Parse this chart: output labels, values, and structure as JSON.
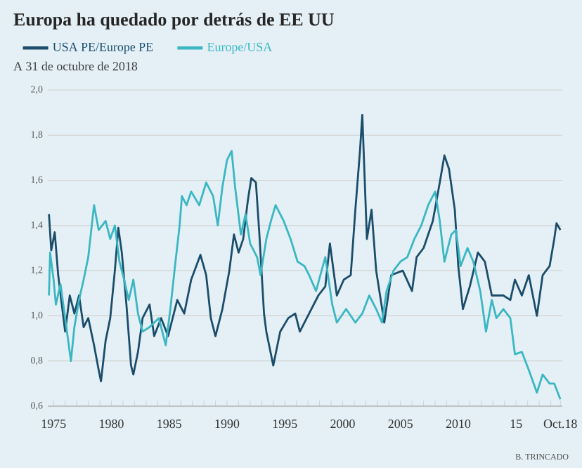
{
  "chart_data": {
    "type": "line",
    "title": "Europa ha quedado por detrás de EE UU",
    "subtitle": "A 31 de octubre de 2018",
    "annotations": [
      "B. TRINCADO"
    ],
    "series": [
      {
        "name": "USA PE/Europe PE",
        "color": "#1b4d6b",
        "x": [
          1974.6,
          1974.8,
          1975.1,
          1975.4,
          1976.0,
          1976.4,
          1976.8,
          1977.2,
          1977.6,
          1978.0,
          1978.5,
          1978.9,
          1979.1,
          1979.5,
          1979.9,
          1980.3,
          1980.6,
          1980.9,
          1981.3,
          1981.7,
          1981.9,
          1982.3,
          1982.7,
          1983.3,
          1983.7,
          1984.3,
          1984.9,
          1985.7,
          1986.3,
          1986.9,
          1987.7,
          1988.2,
          1988.6,
          1989.0,
          1989.6,
          1990.2,
          1990.6,
          1991.0,
          1991.4,
          1991.8,
          1992.1,
          1992.5,
          1992.8,
          1993.2,
          1993.4,
          1994.0,
          1994.6,
          1995.3,
          1995.9,
          1996.3,
          1997.1,
          1997.9,
          1998.5,
          1998.9,
          1999.5,
          2000.1,
          2000.7,
          2001.1,
          2001.5,
          2001.7,
          2002.1,
          2002.5,
          2002.9,
          2003.6,
          2004.2,
          2005.2,
          2006.0,
          2006.4,
          2007.0,
          2007.8,
          2008.4,
          2008.8,
          2009.2,
          2009.7,
          2010.0,
          2010.4,
          2011.0,
          2011.7,
          2012.3,
          2012.9,
          2013.9,
          2014.5,
          2014.9,
          2015.5,
          2016.1,
          2016.8,
          2017.3,
          2017.9,
          2018.3,
          2018.5,
          2018.83
        ],
        "values": [
          1.45,
          1.29,
          1.37,
          1.18,
          0.93,
          1.09,
          1.01,
          1.09,
          0.95,
          0.99,
          0.87,
          0.76,
          0.71,
          0.89,
          0.99,
          1.2,
          1.39,
          1.28,
          1.05,
          0.78,
          0.74,
          0.84,
          0.99,
          1.05,
          0.91,
          0.99,
          0.91,
          1.07,
          1.01,
          1.16,
          1.27,
          1.18,
          0.99,
          0.91,
          1.03,
          1.2,
          1.36,
          1.28,
          1.34,
          1.51,
          1.61,
          1.59,
          1.36,
          1.01,
          0.93,
          0.78,
          0.93,
          0.99,
          1.01,
          0.93,
          1.01,
          1.09,
          1.13,
          1.32,
          1.09,
          1.16,
          1.18,
          1.47,
          1.73,
          1.89,
          1.34,
          1.47,
          1.2,
          0.97,
          1.18,
          1.2,
          1.11,
          1.26,
          1.3,
          1.42,
          1.59,
          1.71,
          1.65,
          1.47,
          1.22,
          1.03,
          1.13,
          1.28,
          1.24,
          1.09,
          1.09,
          1.07,
          1.16,
          1.09,
          1.18,
          1.0,
          1.18,
          1.22,
          1.34,
          1.41,
          1.38
        ]
      },
      {
        "name": "Europe/USA",
        "color": "#3ab7c3",
        "x": [
          1974.6,
          1974.7,
          1975.0,
          1975.2,
          1975.6,
          1976.0,
          1976.5,
          1976.8,
          1977.2,
          1977.6,
          1978.0,
          1978.5,
          1978.9,
          1979.5,
          1979.9,
          1980.3,
          1980.7,
          1981.1,
          1981.5,
          1981.9,
          1982.3,
          1982.7,
          1983.3,
          1984.1,
          1984.7,
          1985.1,
          1985.5,
          1985.9,
          1986.1,
          1986.5,
          1986.9,
          1987.6,
          1988.2,
          1988.8,
          1989.2,
          1989.6,
          1990.0,
          1990.4,
          1990.7,
          1991.2,
          1991.6,
          1992.0,
          1992.6,
          1992.9,
          1993.4,
          1993.8,
          1994.2,
          1994.9,
          1995.5,
          1996.1,
          1996.7,
          1997.1,
          1997.7,
          1998.5,
          1999.1,
          1999.5,
          2000.3,
          2001.1,
          2001.7,
          2002.3,
          2002.9,
          2003.4,
          2003.8,
          2004.4,
          2005.0,
          2005.6,
          2006.2,
          2006.8,
          2007.4,
          2008.0,
          2008.4,
          2008.8,
          2009.4,
          2009.8,
          2010.2,
          2010.8,
          2011.3,
          2011.9,
          2012.4,
          2012.9,
          2013.3,
          2013.9,
          2014.5,
          2014.9,
          2015.5,
          2016.1,
          2016.8,
          2017.3,
          2017.9,
          2018.3,
          2018.83
        ],
        "values": [
          1.09,
          1.28,
          1.16,
          1.05,
          1.14,
          0.99,
          0.8,
          0.95,
          1.07,
          1.16,
          1.26,
          1.49,
          1.38,
          1.42,
          1.34,
          1.4,
          1.24,
          1.16,
          1.07,
          1.16,
          1.01,
          0.93,
          0.95,
          0.99,
          0.87,
          1.03,
          1.22,
          1.4,
          1.53,
          1.49,
          1.55,
          1.49,
          1.59,
          1.53,
          1.4,
          1.57,
          1.69,
          1.73,
          1.57,
          1.36,
          1.45,
          1.32,
          1.26,
          1.18,
          1.34,
          1.42,
          1.49,
          1.42,
          1.34,
          1.24,
          1.22,
          1.18,
          1.11,
          1.26,
          1.05,
          0.97,
          1.03,
          0.97,
          1.01,
          1.09,
          1.03,
          0.97,
          1.11,
          1.2,
          1.24,
          1.26,
          1.34,
          1.4,
          1.49,
          1.55,
          1.42,
          1.24,
          1.36,
          1.38,
          1.22,
          1.3,
          1.24,
          1.11,
          0.93,
          1.07,
          0.99,
          1.03,
          0.99,
          0.83,
          0.84,
          0.76,
          0.66,
          0.74,
          0.7,
          0.7,
          0.63
        ]
      }
    ],
    "xlim": [
      1974.5,
      2019
    ],
    "xticks": [
      1975,
      {
        "value": 1976,
        "label": null
      },
      {
        "value": 1977,
        "label": null
      },
      {
        "value": 1978,
        "label": null
      },
      {
        "value": 1979,
        "label": null
      },
      1980,
      {
        "value": 1981,
        "label": null
      },
      {
        "value": 1982,
        "label": null
      },
      {
        "value": 1983,
        "label": null
      },
      {
        "value": 1984,
        "label": null
      },
      1985,
      {
        "value": 1986,
        "label": null
      },
      {
        "value": 1987,
        "label": null
      },
      {
        "value": 1988,
        "label": null
      },
      {
        "value": 1989,
        "label": null
      },
      1990,
      {
        "value": 1991,
        "label": null
      },
      {
        "value": 1992,
        "label": null
      },
      {
        "value": 1993,
        "label": null
      },
      {
        "value": 1994,
        "label": null
      },
      1995,
      {
        "value": 1996,
        "label": null
      },
      {
        "value": 1997,
        "label": null
      },
      {
        "value": 1998,
        "label": null
      },
      {
        "value": 1999,
        "label": null
      },
      2000,
      {
        "value": 2001,
        "label": null
      },
      {
        "value": 2002,
        "label": null
      },
      {
        "value": 2003,
        "label": null
      },
      {
        "value": 2004,
        "label": null
      },
      2005,
      {
        "value": 2006,
        "label": null
      },
      {
        "value": 2007,
        "label": null
      },
      {
        "value": 2008,
        "label": null
      },
      {
        "value": 2009,
        "label": null
      },
      2010,
      {
        "value": 2011,
        "label": null
      },
      {
        "value": 2012,
        "label": null
      },
      {
        "value": 2013,
        "label": null
      },
      {
        "value": 2014,
        "label": null
      },
      {
        "value": 2015,
        "label": "15"
      },
      {
        "value": 2016,
        "label": null
      },
      {
        "value": 2017,
        "label": null
      },
      {
        "value": 2018,
        "label": null
      },
      {
        "value": 2018.83,
        "label": "Oct.18"
      }
    ],
    "ylim": [
      0.6,
      2.0
    ],
    "yticks": [
      {
        "value": 0.6,
        "label": "0,6"
      },
      {
        "value": 0.8,
        "label": "0,8"
      },
      {
        "value": 1.0,
        "label": "1,0"
      },
      {
        "value": 1.2,
        "label": "1,2"
      },
      {
        "value": 1.4,
        "label": "1,4"
      },
      {
        "value": 1.6,
        "label": "1,6"
      },
      {
        "value": 1.8,
        "label": "1,8"
      },
      {
        "value": 2.0,
        "label": "2,0"
      }
    ],
    "grid": "y",
    "legend": "top left",
    "marker": "none",
    "line_style": "solid"
  }
}
